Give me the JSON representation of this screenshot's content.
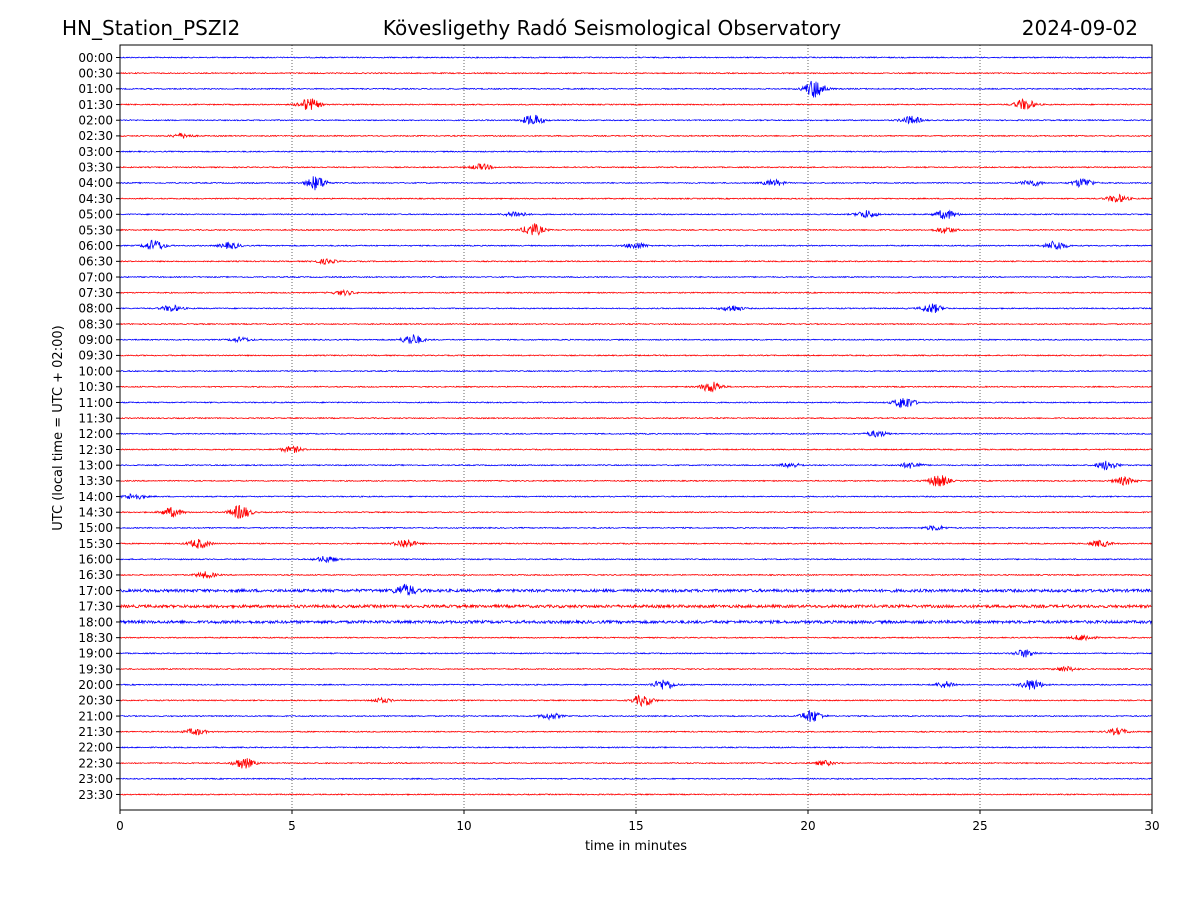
{
  "header": {
    "station": "HN_Station_PSZI2",
    "observatory": "Kövesligethy Radó Seismological Observatory",
    "date": "2024-09-02"
  },
  "chart_data": {
    "type": "line",
    "title": "Kövesligethy Radó Seismological Observatory",
    "xlabel": "time in minutes",
    "ylabel": "UTC (local time = UTC + 02:00)",
    "xlim": [
      0,
      30
    ],
    "xticks": [
      0,
      5,
      10,
      15,
      20,
      25,
      30
    ],
    "vgrid_minutes": [
      5,
      10,
      15,
      20,
      25
    ],
    "grid": "vertical dotted",
    "trace_colors": {
      "even": "#0000ff",
      "odd": "#ff0000"
    },
    "rows": [
      "00:00",
      "00:30",
      "01:00",
      "01:30",
      "02:00",
      "02:30",
      "03:00",
      "03:30",
      "04:00",
      "04:30",
      "05:00",
      "05:30",
      "06:00",
      "06:30",
      "07:00",
      "07:30",
      "08:00",
      "08:30",
      "09:00",
      "09:30",
      "10:00",
      "10:30",
      "11:00",
      "11:30",
      "12:00",
      "12:30",
      "13:00",
      "13:30",
      "14:00",
      "14:30",
      "15:00",
      "15:30",
      "16:00",
      "16:30",
      "17:00",
      "17:30",
      "18:00",
      "18:30",
      "19:00",
      "19:30",
      "20:00",
      "20:30",
      "21:00",
      "21:30",
      "22:00",
      "22:30",
      "23:00",
      "23:30"
    ],
    "noisy_rows": [
      "17:00",
      "17:30",
      "18:00"
    ],
    "events": [
      {
        "row": "01:00",
        "t": 20.2,
        "amp": 0.6
      },
      {
        "row": "01:30",
        "t": 5.5,
        "amp": 0.4
      },
      {
        "row": "01:30",
        "t": 26.3,
        "amp": 0.35
      },
      {
        "row": "02:00",
        "t": 12.0,
        "amp": 0.35
      },
      {
        "row": "02:00",
        "t": 23.0,
        "amp": 0.25
      },
      {
        "row": "02:30",
        "t": 1.8,
        "amp": 0.15
      },
      {
        "row": "03:30",
        "t": 10.5,
        "amp": 0.2
      },
      {
        "row": "04:00",
        "t": 5.7,
        "amp": 0.45
      },
      {
        "row": "04:00",
        "t": 19.0,
        "amp": 0.2
      },
      {
        "row": "04:00",
        "t": 26.5,
        "amp": 0.2
      },
      {
        "row": "04:00",
        "t": 28.0,
        "amp": 0.3
      },
      {
        "row": "04:30",
        "t": 29.0,
        "amp": 0.25
      },
      {
        "row": "05:00",
        "t": 11.5,
        "amp": 0.2
      },
      {
        "row": "05:00",
        "t": 21.7,
        "amp": 0.25
      },
      {
        "row": "05:00",
        "t": 24.0,
        "amp": 0.3
      },
      {
        "row": "05:30",
        "t": 12.0,
        "amp": 0.4
      },
      {
        "row": "05:30",
        "t": 24.0,
        "amp": 0.2
      },
      {
        "row": "06:00",
        "t": 1.0,
        "amp": 0.35
      },
      {
        "row": "06:00",
        "t": 3.2,
        "amp": 0.2
      },
      {
        "row": "06:00",
        "t": 15.0,
        "amp": 0.2
      },
      {
        "row": "06:00",
        "t": 27.2,
        "amp": 0.3
      },
      {
        "row": "06:30",
        "t": 6.0,
        "amp": 0.15
      },
      {
        "row": "07:30",
        "t": 6.5,
        "amp": 0.15
      },
      {
        "row": "08:00",
        "t": 1.5,
        "amp": 0.2
      },
      {
        "row": "08:00",
        "t": 17.8,
        "amp": 0.2
      },
      {
        "row": "08:00",
        "t": 23.6,
        "amp": 0.3
      },
      {
        "row": "09:00",
        "t": 8.5,
        "amp": 0.35
      },
      {
        "row": "09:00",
        "t": 3.5,
        "amp": 0.15
      },
      {
        "row": "10:30",
        "t": 17.2,
        "amp": 0.35
      },
      {
        "row": "11:00",
        "t": 22.8,
        "amp": 0.4
      },
      {
        "row": "12:00",
        "t": 22.0,
        "amp": 0.2
      },
      {
        "row": "12:30",
        "t": 5.0,
        "amp": 0.2
      },
      {
        "row": "13:00",
        "t": 19.5,
        "amp": 0.15
      },
      {
        "row": "13:00",
        "t": 23.0,
        "amp": 0.2
      },
      {
        "row": "13:00",
        "t": 28.7,
        "amp": 0.3
      },
      {
        "row": "13:30",
        "t": 23.8,
        "amp": 0.4
      },
      {
        "row": "13:30",
        "t": 29.2,
        "amp": 0.25
      },
      {
        "row": "14:00",
        "t": 0.4,
        "amp": 0.2
      },
      {
        "row": "14:30",
        "t": 1.5,
        "amp": 0.3
      },
      {
        "row": "14:30",
        "t": 3.5,
        "amp": 0.45
      },
      {
        "row": "15:00",
        "t": 23.7,
        "amp": 0.15
      },
      {
        "row": "15:30",
        "t": 2.3,
        "amp": 0.3
      },
      {
        "row": "15:30",
        "t": 8.3,
        "amp": 0.3
      },
      {
        "row": "15:30",
        "t": 28.5,
        "amp": 0.2
      },
      {
        "row": "16:00",
        "t": 6.0,
        "amp": 0.2
      },
      {
        "row": "16:30",
        "t": 2.5,
        "amp": 0.2
      },
      {
        "row": "17:00",
        "t": 8.3,
        "amp": 0.35
      },
      {
        "row": "18:30",
        "t": 28.0,
        "amp": 0.2
      },
      {
        "row": "19:00",
        "t": 26.3,
        "amp": 0.25
      },
      {
        "row": "19:30",
        "t": 27.5,
        "amp": 0.15
      },
      {
        "row": "20:00",
        "t": 15.8,
        "amp": 0.35
      },
      {
        "row": "20:00",
        "t": 24.0,
        "amp": 0.2
      },
      {
        "row": "20:00",
        "t": 26.5,
        "amp": 0.35
      },
      {
        "row": "20:30",
        "t": 15.2,
        "amp": 0.35
      },
      {
        "row": "20:30",
        "t": 7.6,
        "amp": 0.15
      },
      {
        "row": "21:00",
        "t": 20.1,
        "amp": 0.4
      },
      {
        "row": "21:00",
        "t": 12.5,
        "amp": 0.2
      },
      {
        "row": "21:30",
        "t": 2.2,
        "amp": 0.2
      },
      {
        "row": "21:30",
        "t": 29.0,
        "amp": 0.2
      },
      {
        "row": "22:30",
        "t": 3.6,
        "amp": 0.35
      },
      {
        "row": "22:30",
        "t": 20.5,
        "amp": 0.15
      }
    ]
  }
}
